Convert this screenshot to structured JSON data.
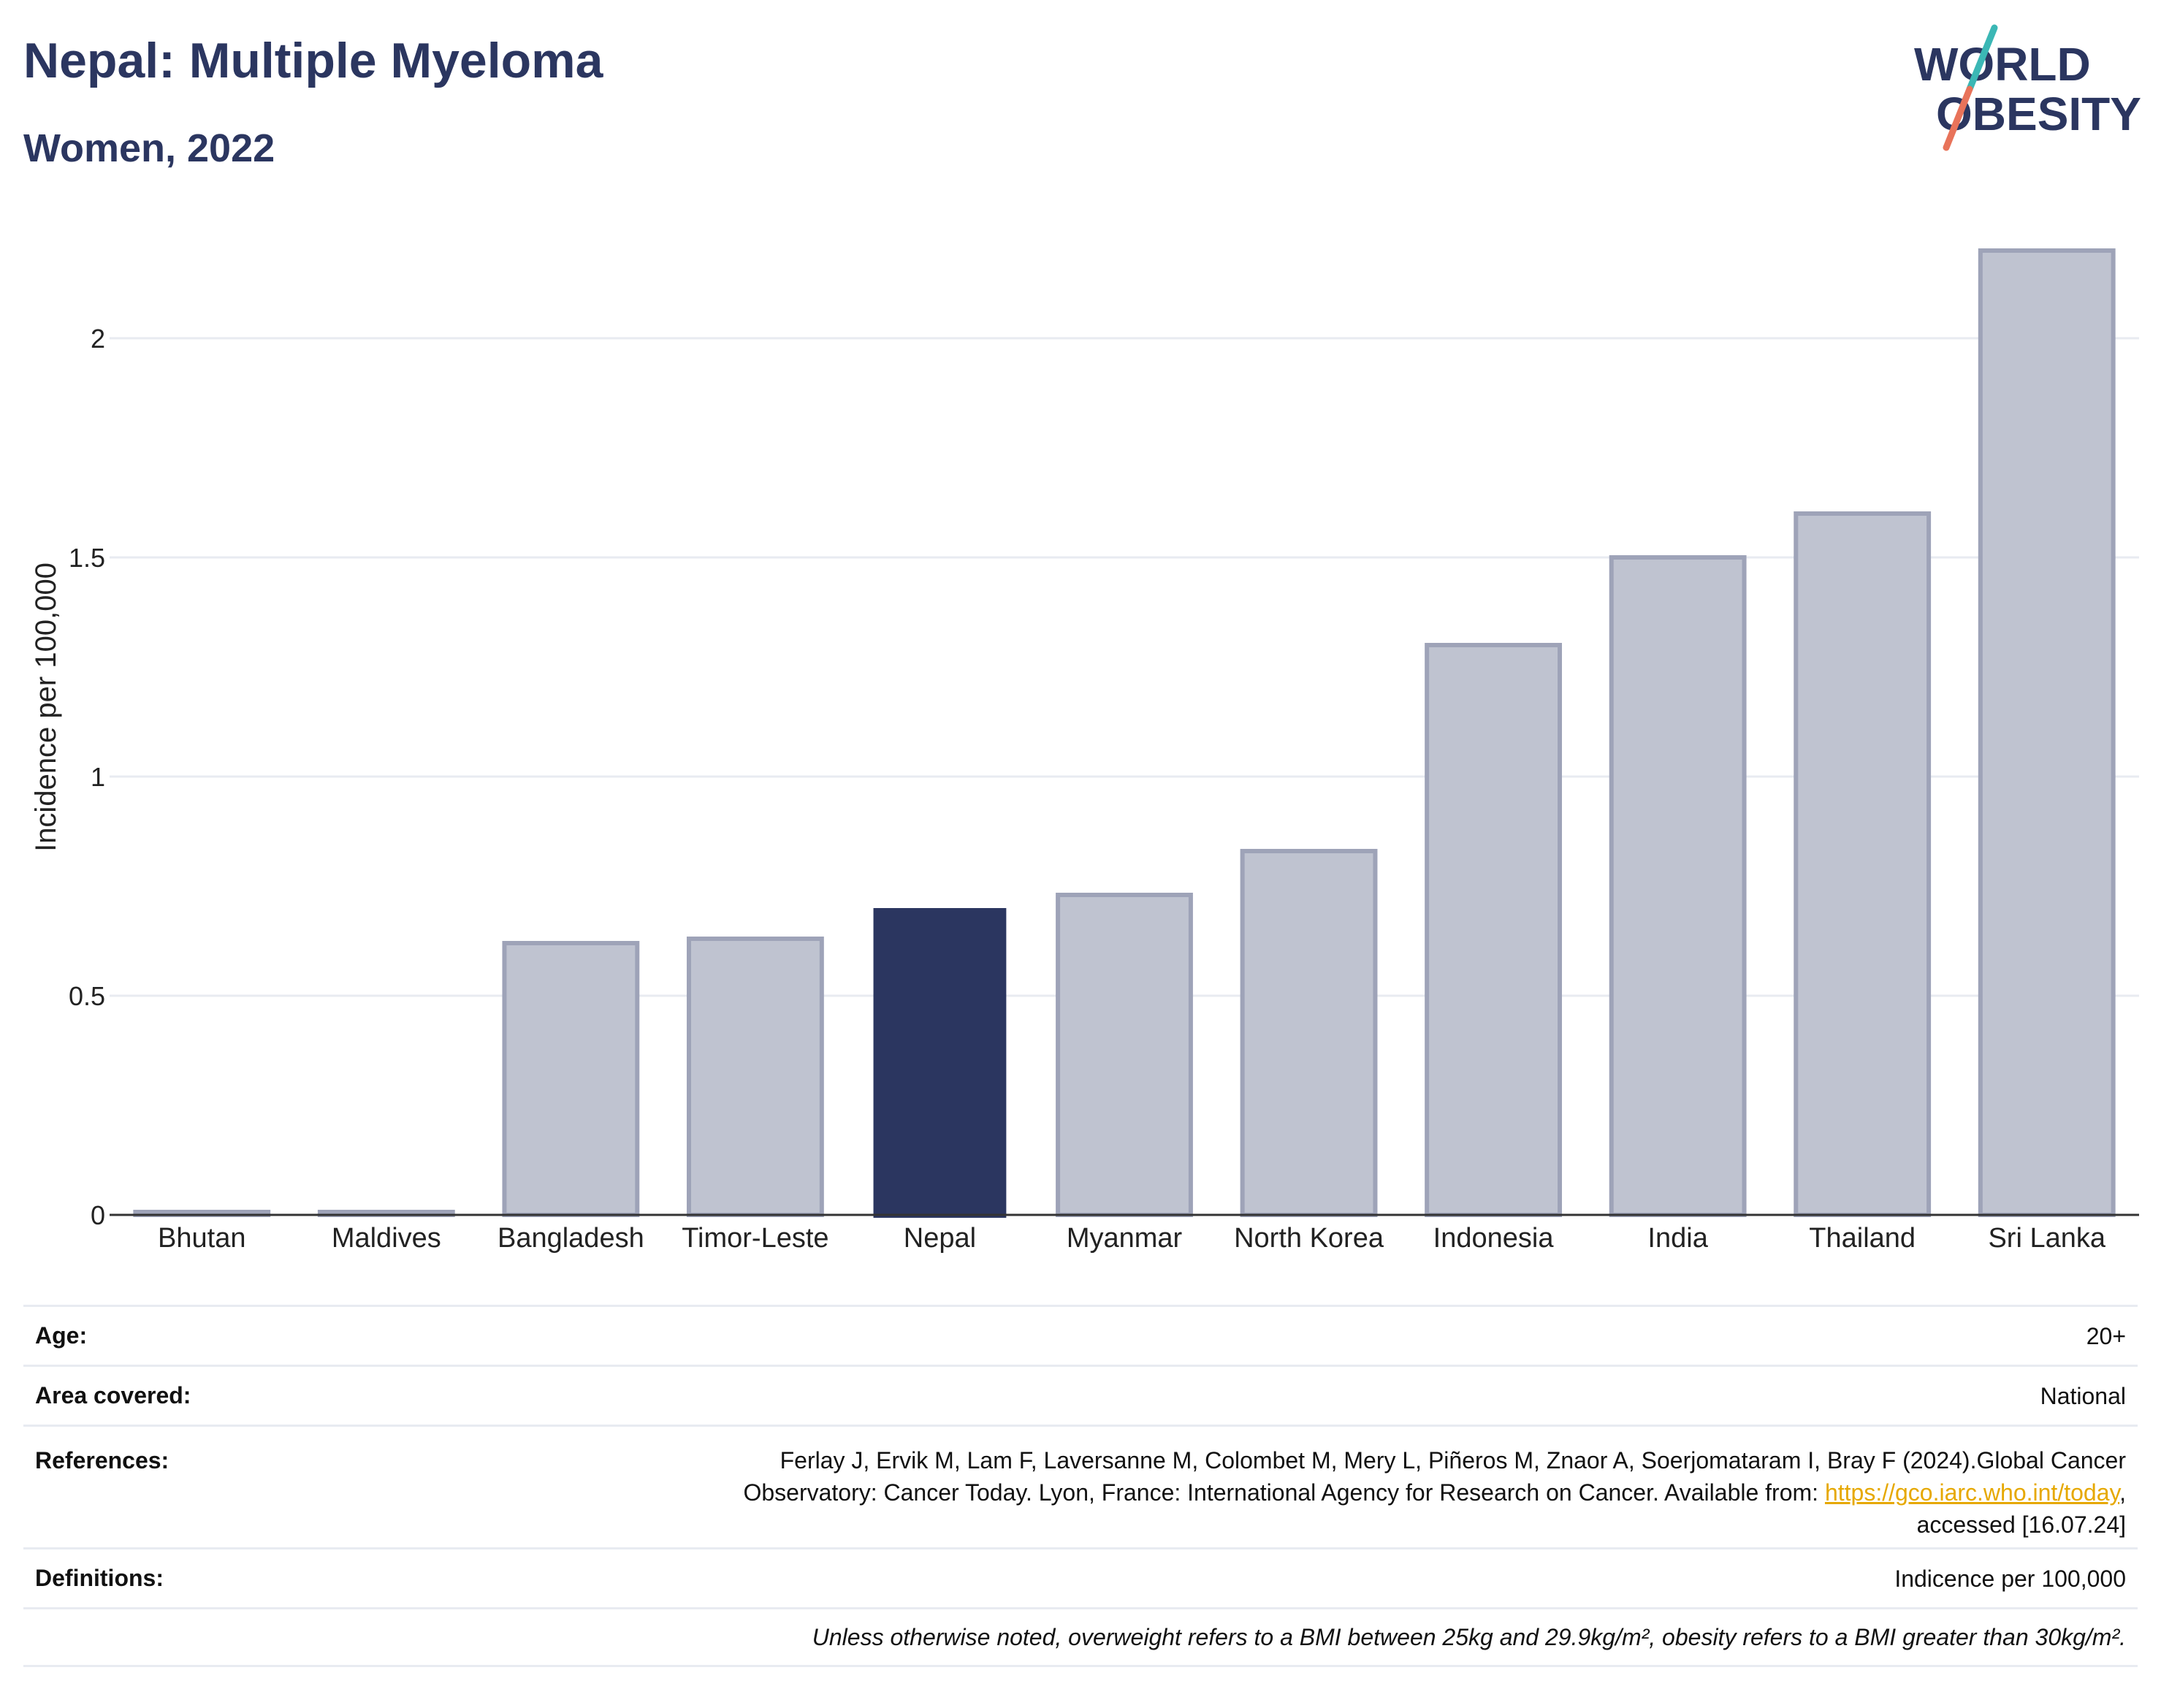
{
  "header": {
    "title": "Nepal: Multiple Myeloma",
    "subtitle": "Women, 2022"
  },
  "logo": {
    "text_top": "WORLD",
    "text_bottom": "OBESITY",
    "colors": {
      "text": "#2b3660",
      "slash_top": "#3bb7b5",
      "slash_bottom": "#e8735a"
    }
  },
  "chart_data": {
    "type": "bar",
    "categories": [
      "Bhutan",
      "Maldives",
      "Bangladesh",
      "Timor-Leste",
      "Nepal",
      "Myanmar",
      "North Korea",
      "Indonesia",
      "India",
      "Thailand",
      "Sri Lanka"
    ],
    "values": [
      0,
      0,
      0.62,
      0.63,
      0.7,
      0.73,
      0.83,
      1.3,
      1.5,
      1.6,
      2.2
    ],
    "highlight": "Nepal",
    "ylabel": "Incidence per 100,000",
    "ylim": [
      0,
      2.3
    ],
    "yticks": [
      0,
      0.5,
      1,
      1.5,
      2
    ],
    "ytick_labels": [
      "0",
      "0.5",
      "1",
      "1.5",
      "2"
    ],
    "grid": true,
    "colors": {
      "bar": "#bfc3d0",
      "bar_edge": "#9ea3b8",
      "highlight": "#2b3660",
      "grid": "#e8ebf1",
      "axis": "#333333"
    }
  },
  "meta": {
    "age_label": "Age:",
    "age_value": "20+",
    "area_label": "Area covered:",
    "area_value": "National",
    "references_label": "References:",
    "references_line1": "Ferlay J, Ervik M, Lam F, Laversanne M, Colombet M, Mery L, Piñeros M, Znaor A, Soerjomataram I, Bray F (2024).Global Cancer",
    "references_line2_pre": "Observatory: Cancer Today. Lyon, France: International Agency for Research on Cancer. Available from: ",
    "references_link": "https://gco.iarc.who.int/today",
    "references_line2_post": ",",
    "references_line3": "accessed [16.07.24]",
    "definitions_label": "Definitions:",
    "definitions_value": "Indicence per 100,000",
    "footnote": "Unless otherwise noted, overweight refers to a BMI between 25kg and 29.9kg/m², obesity refers to a BMI greater than 30kg/m²."
  }
}
